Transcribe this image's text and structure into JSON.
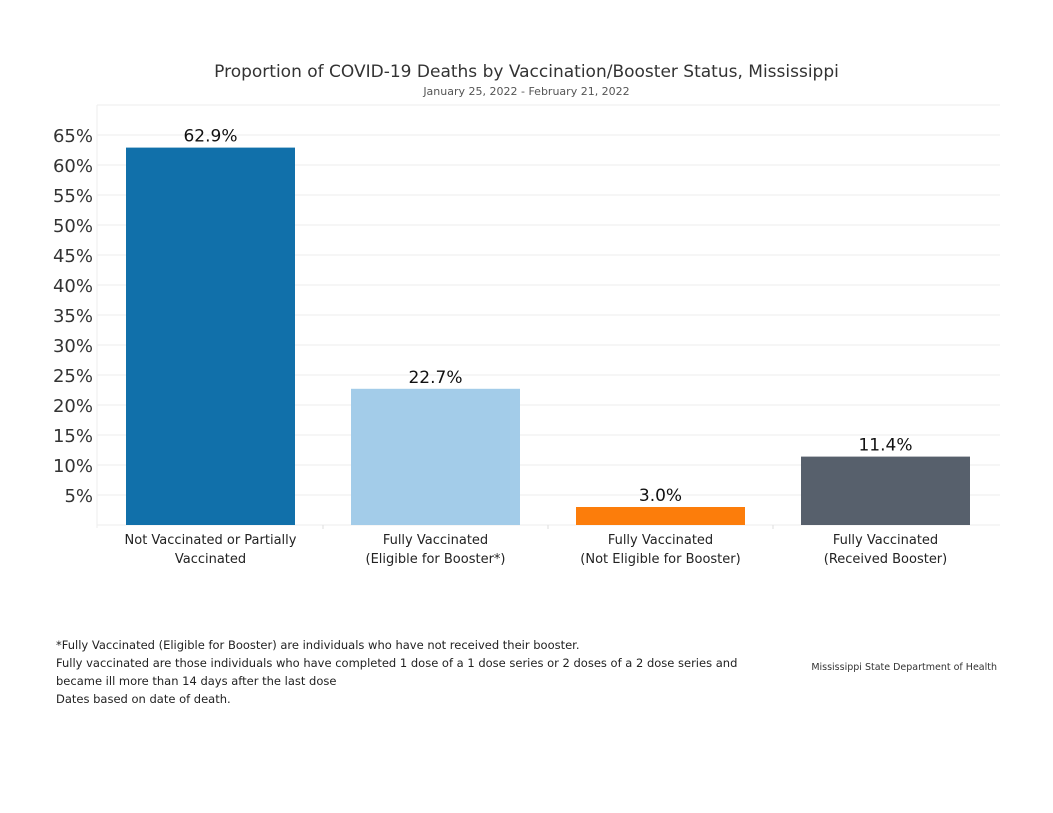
{
  "chart_data": {
    "type": "bar",
    "title": "Proportion of COVID-19 Deaths by Vaccination/Booster Status, Mississippi",
    "subtitle": "January 25, 2022 - February 21, 2022",
    "categories": [
      [
        "Not Vaccinated or Partially",
        "Vaccinated"
      ],
      [
        "Fully Vaccinated",
        "(Eligible for Booster*)"
      ],
      [
        "Fully Vaccinated",
        "(Not Eligible for Booster)"
      ],
      [
        "Fully Vaccinated",
        "(Received Booster)"
      ]
    ],
    "values": [
      62.9,
      22.7,
      3.0,
      11.4
    ],
    "data_labels": [
      "62.9%",
      "22.7%",
      "3.0%",
      "11.4%"
    ],
    "colors": [
      "#1170aa",
      "#a3cce9",
      "#fc7d0b",
      "#57606c"
    ],
    "yticks": [
      5,
      10,
      15,
      20,
      25,
      30,
      35,
      40,
      45,
      50,
      55,
      60,
      65
    ],
    "ytick_labels": [
      "5%",
      "10%",
      "15%",
      "20%",
      "25%",
      "30%",
      "35%",
      "40%",
      "45%",
      "50%",
      "55%",
      "60%",
      "65%"
    ],
    "ylim": [
      0,
      70
    ],
    "grid": true,
    "xlabel": "",
    "ylabel": ""
  },
  "footnotes": [
    "*Fully Vaccinated (Eligible for Booster) are individuals who have not received their booster.",
    "Fully vaccinated are those individuals who have completed 1 dose of a 1 dose series or 2 doses of a 2 dose series and",
    "became ill more than 14 days after the last dose",
    "Dates based on date of death."
  ],
  "source": "Mississippi State Department of Health"
}
